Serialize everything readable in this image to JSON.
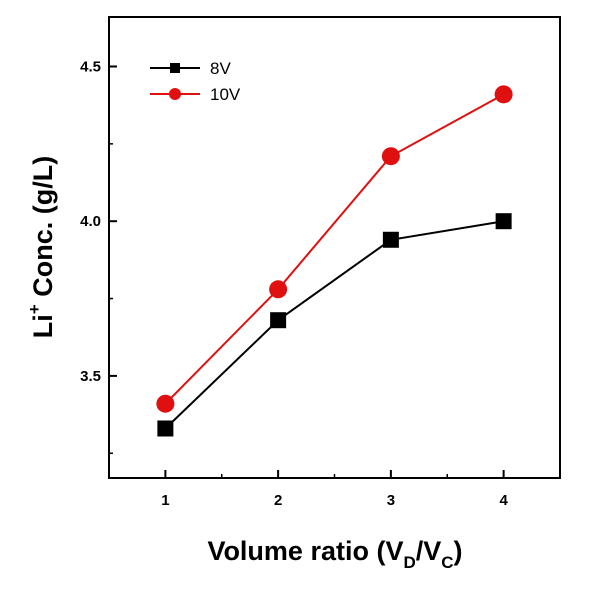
{
  "chart_data": {
    "type": "line",
    "x": [
      1,
      2,
      3,
      4
    ],
    "xticks": [
      "1",
      "2",
      "3",
      "4"
    ],
    "yticks": [
      "3.5",
      "4.0",
      "4.5"
    ],
    "xlim": [
      0.5,
      4.5
    ],
    "ylim": [
      3.17,
      4.66
    ],
    "xlabel": {
      "main": "Volume ratio (V",
      "sub1": "D",
      "mid": "/V",
      "sub2": "C",
      "end": ")"
    },
    "ylabel": {
      "prefix": "Li",
      "sup": "+",
      "suffix": " Conc. (g/L)"
    },
    "grid": false,
    "legend_position": "top-left",
    "series": [
      {
        "name": "8V",
        "marker": "square",
        "color": "#000000",
        "values": [
          3.33,
          3.68,
          3.94,
          4.0
        ]
      },
      {
        "name": "10V",
        "marker": "circle",
        "color": "#e01010",
        "values": [
          3.41,
          3.78,
          4.21,
          4.41
        ]
      }
    ]
  }
}
